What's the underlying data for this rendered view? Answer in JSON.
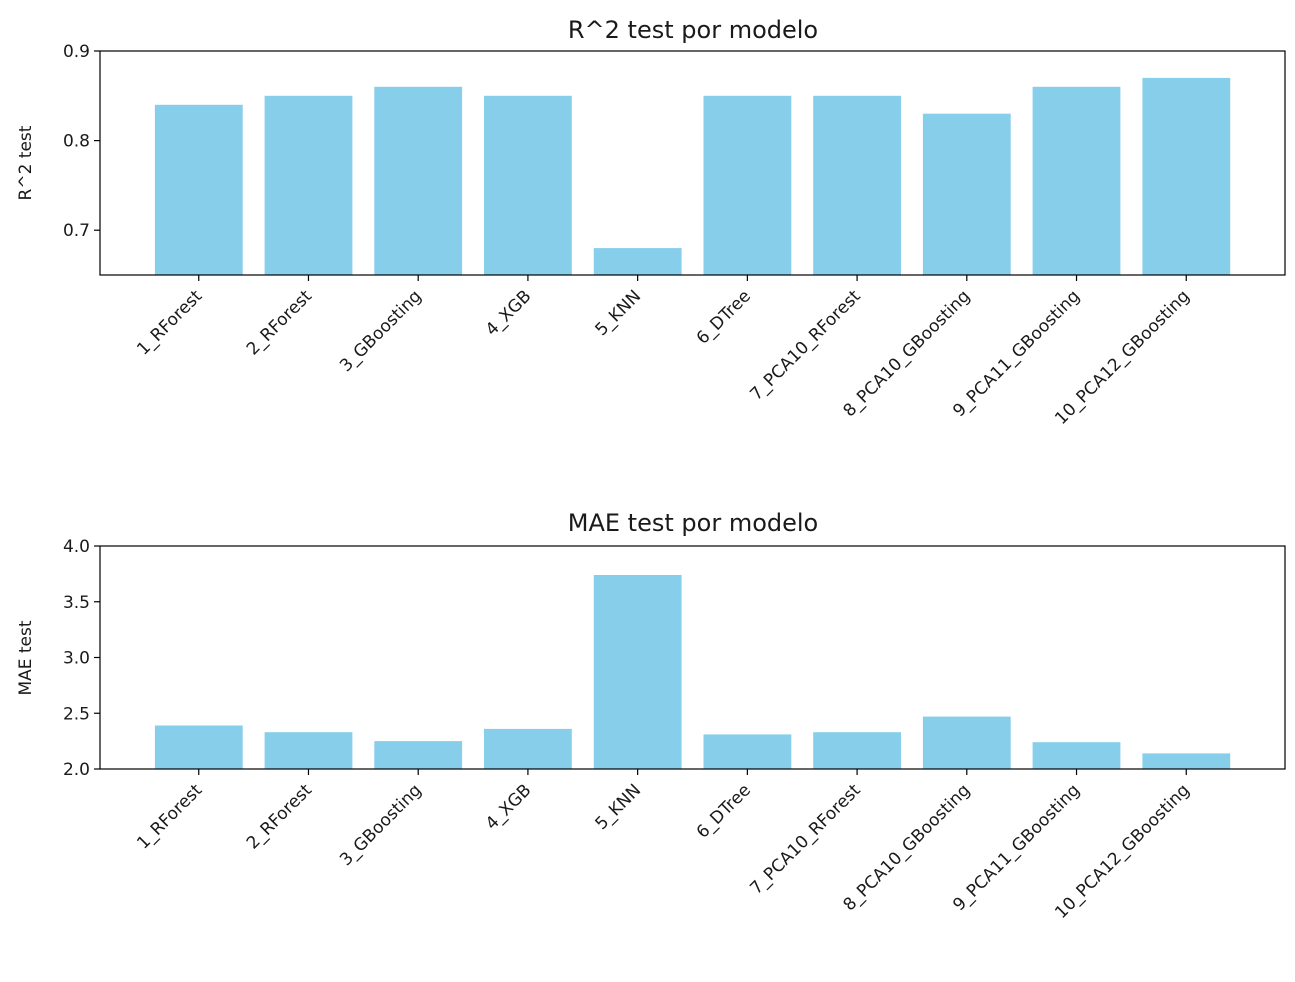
{
  "colors": {
    "bar": "#87ceeb",
    "axis": "#000000",
    "text": "#1a1a1a",
    "background": "#ffffff"
  },
  "chart_data": [
    {
      "type": "bar",
      "title": "R^2 test por modelo",
      "xlabel": "",
      "ylabel": "R^2 test",
      "ylim": [
        0.65,
        0.9
      ],
      "yticks": [
        0.7,
        0.8,
        0.9
      ],
      "ytick_labels": [
        "0.7",
        "0.8",
        "0.9"
      ],
      "grid": false,
      "categories": [
        "1_RForest",
        "2_RForest",
        "3_GBoosting",
        "4_XGB",
        "5_KNN",
        "6_DTree",
        "7_PCA10_RForest",
        "8_PCA10_GBoosting",
        "9_PCA11_GBoosting",
        "10_PCA12_GBoosting"
      ],
      "values": [
        0.84,
        0.85,
        0.86,
        0.85,
        0.68,
        0.85,
        0.85,
        0.83,
        0.86,
        0.87
      ]
    },
    {
      "type": "bar",
      "title": "MAE test por modelo",
      "xlabel": "",
      "ylabel": "MAE test",
      "ylim": [
        2.0,
        4.0
      ],
      "yticks": [
        2.0,
        2.5,
        3.0,
        3.5,
        4.0
      ],
      "ytick_labels": [
        "2.0",
        "2.5",
        "3.0",
        "3.5",
        "4.0"
      ],
      "grid": false,
      "categories": [
        "1_RForest",
        "2_RForest",
        "3_GBoosting",
        "4_XGB",
        "5_KNN",
        "6_DTree",
        "7_PCA10_RForest",
        "8_PCA10_GBoosting",
        "9_PCA11_GBoosting",
        "10_PCA12_GBoosting"
      ],
      "values": [
        2.39,
        2.33,
        2.25,
        2.36,
        3.74,
        2.31,
        2.33,
        2.47,
        2.24,
        2.14
      ]
    }
  ]
}
